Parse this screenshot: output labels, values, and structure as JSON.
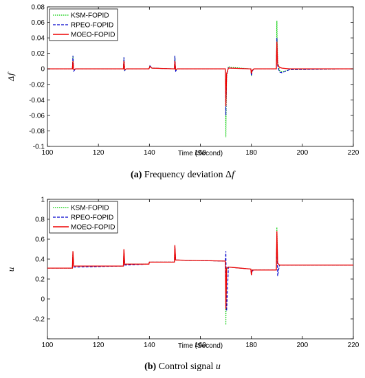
{
  "chart_data": [
    {
      "type": "line",
      "ylabel": "Δf",
      "xlabel": "Time (Second)",
      "xlim": [
        100,
        220
      ],
      "ylim": [
        -0.1,
        0.08
      ],
      "xticks": [
        100,
        120,
        140,
        160,
        180,
        200,
        220
      ],
      "yticks": [
        -0.1,
        -0.08,
        -0.06,
        -0.04,
        -0.02,
        0,
        0.02,
        0.04,
        0.06,
        0.08
      ],
      "ytick_labels": [
        "-0.1",
        "-0.08",
        "-0.06",
        "-0.04",
        "-0.02",
        "0",
        "0.02",
        "0.04",
        "0.06",
        "0.08"
      ],
      "grid": false,
      "legend_position": "top-left",
      "caption_tag": "(a)",
      "caption_text": "Frequency deviation Δ",
      "caption_var": "f",
      "series": [
        {
          "name": "KSM-FOPID",
          "color": "#00cc00",
          "style": "dotted",
          "x": [
            100,
            109.8,
            110,
            110.3,
            111,
            129.8,
            130,
            130.3,
            131,
            139.8,
            140.2,
            141,
            149.8,
            150,
            150.3,
            151,
            169.8,
            170,
            170.3,
            171,
            172,
            179.8,
            180,
            180.3,
            181,
            189.8,
            190,
            190.3,
            191,
            192,
            195,
            220
          ],
          "y": [
            0,
            0,
            0.017,
            -0.002,
            0,
            0,
            0.015,
            -0.002,
            0,
            0,
            0.004,
            0.001,
            0,
            0.016,
            -0.002,
            0,
            0,
            -0.088,
            -0.01,
            0.003,
            0.002,
            0,
            -0.009,
            -0.003,
            0,
            0,
            0.062,
            0.01,
            -0.002,
            -0.004,
            -0.001,
            0
          ]
        },
        {
          "name": "RPEO-FOPID",
          "color": "#0000cc",
          "style": "dashed",
          "x": [
            100,
            109.8,
            110,
            110.3,
            111,
            129.8,
            130,
            130.3,
            131,
            139.8,
            140.2,
            141,
            149.8,
            150,
            150.3,
            151,
            169.8,
            170,
            170.3,
            171,
            172,
            179.8,
            180,
            180.3,
            181,
            189.8,
            190,
            190.3,
            191,
            192,
            195,
            220
          ],
          "y": [
            0,
            0,
            0.017,
            -0.003,
            0,
            0,
            0.015,
            -0.002,
            0,
            0,
            0.004,
            0.001,
            0,
            0.017,
            -0.003,
            0,
            0,
            -0.06,
            -0.008,
            0.002,
            0.001,
            0,
            -0.009,
            -0.003,
            0,
            0,
            0.04,
            0.004,
            -0.004,
            -0.005,
            -0.001,
            0
          ]
        },
        {
          "name": "MOEO-FOPID",
          "color": "#ee0000",
          "style": "solid",
          "x": [
            100,
            109.8,
            110,
            110.3,
            111,
            129.8,
            130,
            130.3,
            131,
            139.8,
            140.2,
            141,
            149.8,
            150,
            150.3,
            151,
            169.8,
            170,
            170.3,
            171,
            172,
            179.8,
            180,
            180.3,
            181,
            189.8,
            190,
            190.3,
            191,
            192,
            195,
            220
          ],
          "y": [
            0,
            0,
            0.01,
            -0.001,
            0,
            0,
            0.01,
            -0.001,
            0,
            0,
            0.003,
            0.001,
            0,
            0.01,
            -0.001,
            0,
            0,
            -0.048,
            -0.006,
            0.001,
            0.001,
            0,
            -0.006,
            -0.002,
            0,
            0,
            0.035,
            0.006,
            0.002,
            0.001,
            0,
            0
          ]
        }
      ]
    },
    {
      "type": "line",
      "ylabel": "u",
      "xlabel": "Time (Second)",
      "xlim": [
        100,
        220
      ],
      "ylim": [
        -0.4,
        1
      ],
      "xticks": [
        100,
        120,
        140,
        160,
        180,
        200,
        220
      ],
      "yticks": [
        -0.4,
        -0.2,
        0,
        0.2,
        0.4,
        0.6,
        0.8,
        1
      ],
      "ytick_labels": [
        "",
        "-0.2",
        "0",
        "0.2",
        "0.4",
        "0.6",
        "0.8",
        "1"
      ],
      "grid": false,
      "legend_position": "top-left",
      "caption_tag": "(b)",
      "caption_text": "Control signal ",
      "caption_var": "u",
      "series": [
        {
          "name": "KSM-FOPID",
          "color": "#00cc00",
          "style": "dotted",
          "x": [
            100,
            109.8,
            110,
            110.3,
            111,
            129.8,
            130,
            130.3,
            131,
            139.8,
            140,
            141,
            149.8,
            150,
            150.3,
            151,
            169.8,
            170,
            170.3,
            171,
            179.8,
            180,
            180.3,
            181,
            189.8,
            190,
            190.3,
            191,
            220
          ],
          "y": [
            0.31,
            0.31,
            0.47,
            0.33,
            0.33,
            0.33,
            0.49,
            0.35,
            0.35,
            0.35,
            0.37,
            0.37,
            0.37,
            0.52,
            0.39,
            0.39,
            0.38,
            -0.26,
            0.3,
            0.32,
            0.3,
            0.24,
            0.29,
            0.29,
            0.29,
            0.72,
            0.36,
            0.34,
            0.34
          ]
        },
        {
          "name": "RPEO-FOPID",
          "color": "#0000cc",
          "style": "dashed",
          "x": [
            100,
            109.8,
            110,
            110.3,
            111,
            129.8,
            130,
            130.3,
            131,
            139.8,
            140,
            141,
            149.8,
            150,
            150.3,
            151,
            169.8,
            170,
            170.3,
            171,
            179.8,
            180,
            180.3,
            181,
            189.8,
            190,
            190.3,
            191,
            220
          ],
          "y": [
            0.31,
            0.31,
            0.46,
            0.32,
            0.32,
            0.33,
            0.48,
            0.34,
            0.34,
            0.35,
            0.37,
            0.37,
            0.37,
            0.53,
            0.39,
            0.39,
            0.38,
            0.48,
            -0.12,
            0.32,
            0.3,
            0.24,
            0.28,
            0.29,
            0.29,
            0.64,
            0.23,
            0.34,
            0.34
          ]
        },
        {
          "name": "MOEO-FOPID",
          "color": "#ee0000",
          "style": "solid",
          "x": [
            100,
            109.8,
            110,
            110.3,
            111,
            129.8,
            130,
            130.3,
            131,
            139.8,
            140,
            141,
            149.8,
            150,
            150.3,
            151,
            169.8,
            170,
            170.3,
            171,
            179.8,
            180,
            180.3,
            181,
            189.8,
            190,
            190.3,
            191,
            220
          ],
          "y": [
            0.31,
            0.31,
            0.48,
            0.33,
            0.33,
            0.33,
            0.5,
            0.35,
            0.35,
            0.35,
            0.37,
            0.37,
            0.37,
            0.54,
            0.39,
            0.39,
            0.38,
            -0.1,
            0.31,
            0.32,
            0.3,
            0.24,
            0.29,
            0.29,
            0.29,
            0.68,
            0.36,
            0.34,
            0.34
          ]
        }
      ]
    }
  ]
}
